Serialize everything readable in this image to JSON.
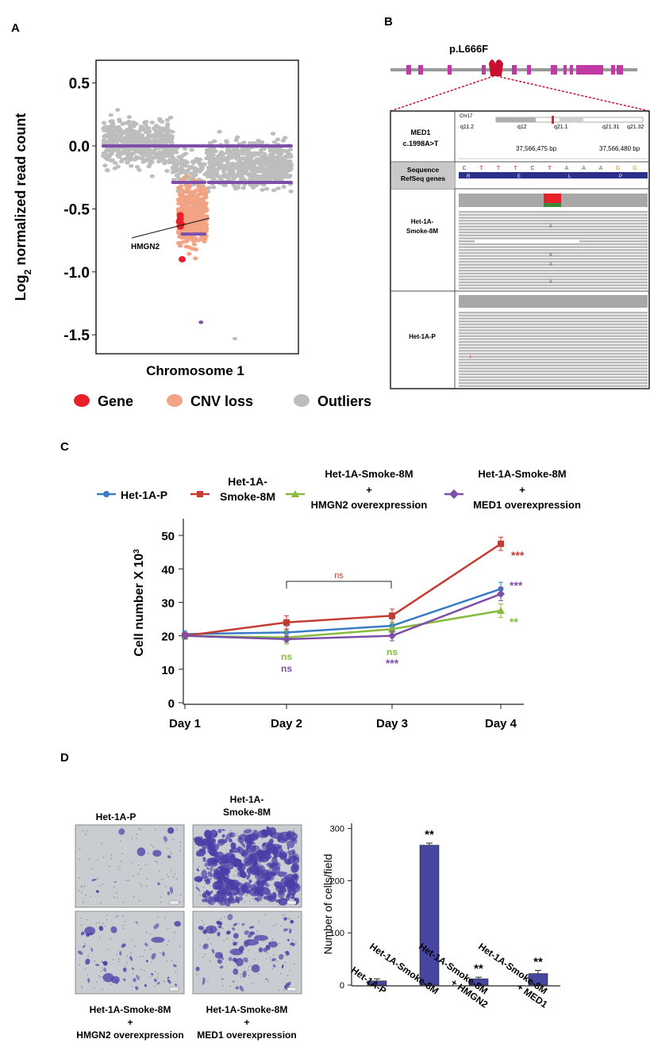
{
  "panels": {
    "a": "A",
    "b": "B",
    "c": "C",
    "d": "D"
  },
  "colors": {
    "gene": "#e8202a",
    "cnv_loss": "#f2a384",
    "outlier": "#bdbdbd",
    "segment": "#7e4fa8",
    "p_series": "#3a7bc8",
    "smoke_series": "#c43b32",
    "hmgn2_series": "#86bb3e",
    "med1_series": "#7e4fa8",
    "bar": "#4646a0",
    "micro_bg": "#c9ccd0",
    "micro_stain": "#4a3ea8"
  },
  "chart_data": [
    {
      "id": "A",
      "type": "scatter",
      "title": "",
      "xlabel": "Chromosome 1",
      "ylabel": "Log2 normalized read count",
      "ylabel_main": "Log",
      "ylabel_sub": "2",
      "ylabel_rest": " normalized read count",
      "ylim": [
        -1.65,
        0.68
      ],
      "yticks": [
        0.5,
        0.0,
        -0.5,
        -1.0,
        -1.5
      ],
      "ytick_labels": [
        "0.5",
        "0.0",
        "-0.5",
        "-1.0",
        "-1.5"
      ],
      "annotation": "HMGN2",
      "segments": [
        {
          "x0": 0.0,
          "x1": 0.44,
          "y": 0.0
        },
        {
          "x0": 0.45,
          "x1": 1.0,
          "y": 0.0
        },
        {
          "x0": 0.37,
          "x1": 0.54,
          "y": -0.29
        },
        {
          "x0": 0.56,
          "x1": 1.0,
          "y": -0.29
        },
        {
          "x0": 0.42,
          "x1": 0.54,
          "y": -0.7
        }
      ],
      "gene_points": [
        {
          "x": 0.41,
          "y": -0.55
        },
        {
          "x": 0.41,
          "y": -0.58
        },
        {
          "x": 0.405,
          "y": -0.6
        },
        {
          "x": 0.415,
          "y": -0.62
        },
        {
          "x": 0.41,
          "y": -0.64
        },
        {
          "x": 0.42,
          "y": -0.9
        }
      ],
      "outlier_points_extra": [
        {
          "x": 0.7,
          "y": -1.53
        },
        {
          "x": 0.52,
          "y": -1.4
        }
      ],
      "legend": [
        {
          "label": "Gene",
          "color": "#e8202a"
        },
        {
          "label": "CNV loss",
          "color": "#f2a384"
        },
        {
          "label": "Outliers",
          "color": "#bdbdbd"
        }
      ]
    },
    {
      "id": "C",
      "type": "line",
      "categories": [
        "Day 1",
        "Day 2",
        "Day 3",
        "Day 4"
      ],
      "ylabel": "Cell number X 10",
      "ylabel_exp": "3",
      "ylim": [
        0,
        55
      ],
      "yticks": [
        0,
        10,
        20,
        30,
        40,
        50
      ],
      "ytick_labels": [
        "0",
        "10",
        "20",
        "30",
        "40",
        "50"
      ],
      "series": [
        {
          "name": "Het-1A-P",
          "name_lines": [
            "Het-1A-P"
          ],
          "marker": "circle",
          "color": "#3a7bc8",
          "values": [
            20.5,
            21,
            23,
            34
          ],
          "errors": [
            1,
            2,
            2,
            2
          ]
        },
        {
          "name": "Het-1A-Smoke-8M",
          "name_lines": [
            "Het-1A-",
            "Smoke-8M"
          ],
          "marker": "square",
          "color": "#c43b32",
          "values": [
            20,
            24,
            26,
            47.5
          ],
          "errors": [
            1,
            2,
            2,
            2
          ]
        },
        {
          "name": "Het-1A-Smoke-8M + HMGN2 overexpression",
          "name_lines": [
            "Het-1A-Smoke-8M",
            "+",
            "HMGN2 overexpression"
          ],
          "marker": "triangle",
          "color": "#86bb3e",
          "values": [
            20,
            19.5,
            22,
            27.5
          ],
          "errors": [
            1,
            2,
            2,
            2
          ]
        },
        {
          "name": "Het-1A-Smoke-8M + MED1 overexpression",
          "name_lines": [
            "Het-1A-Smoke-8M",
            "+",
            "MED1 overexpression"
          ],
          "marker": "diamond",
          "color": "#7e4fa8",
          "values": [
            20,
            19,
            20,
            32.5
          ],
          "errors": [
            1,
            1,
            1.5,
            2
          ]
        }
      ],
      "annotations": {
        "bracket_label": "ns",
        "day2_hmgn2": "ns",
        "day2_med1": "ns",
        "day3_hmgn2": "ns",
        "day3_med1": "***",
        "day4_smoke": "***",
        "day4_med1": "***",
        "day4_hmgn2": "**"
      }
    },
    {
      "id": "D",
      "type": "bar",
      "categories": [
        "Het-1A-P",
        "Het-1A-Smoke-8M",
        "Het-1A-Smoke-8M + HMGN2",
        "Het-1A-Smoke-8M + MED1"
      ],
      "category_lines": [
        [
          "Het-1A-P"
        ],
        [
          "Het-1A-Smoke-8M"
        ],
        [
          "Het-1A-Smoke-8M",
          "+ HMGN2"
        ],
        [
          "Het-1A-Smoke-8M",
          "+ MED1"
        ]
      ],
      "values": [
        8,
        268,
        12,
        22
      ],
      "errors": [
        4,
        4,
        3,
        6
      ],
      "significance": [
        "",
        "**",
        "**",
        "**"
      ],
      "ylabel": "Number of cells/field",
      "ylim": [
        0,
        310
      ],
      "yticks": [
        0,
        100,
        200,
        300
      ],
      "ytick_labels": [
        "0",
        "100",
        "200",
        "300"
      ]
    }
  ],
  "panel_b": {
    "mutation": "p.L666F",
    "chrom": "Chr17",
    "bands": [
      "q11.2",
      "q12",
      "q21.1",
      "q21.31",
      "q21.32"
    ],
    "gene_label_1": "MED1",
    "gene_label_2": "c.1998A>T",
    "bp_left": "37,566,475 bp",
    "bp_right": "37,566,480 bp",
    "sequence_label": "Sequence",
    "refseq_label": "RefSeq genes",
    "bases": [
      "C",
      "T",
      "T",
      "T",
      "C",
      "T",
      "A",
      "A",
      "A",
      "G",
      "G"
    ],
    "amino_acids": [
      "R",
      "E",
      "L",
      "P"
    ],
    "sample_1_line1": "Het-1A-",
    "sample_1_line2": "Smoke-8M",
    "sample_2": "Het-1A-P",
    "variant_base": "A",
    "minor_mark": "I"
  },
  "panel_d_images": {
    "img1": "Het-1A-P",
    "img2_line1": "Het-1A-",
    "img2_line2": "Smoke-8M",
    "img3_line1": "Het-1A-Smoke-8M",
    "img3_line2": "+",
    "img3_line3": "HMGN2 overexpression",
    "img4_line1": "Het-1A-Smoke-8M",
    "img4_line2": "+",
    "img4_line3": "MED1 overexpression"
  }
}
